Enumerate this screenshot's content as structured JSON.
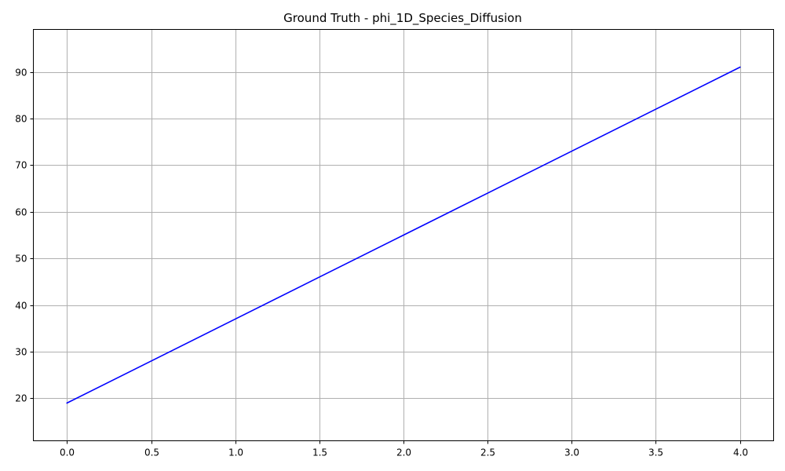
{
  "chart_data": {
    "type": "line",
    "title": "Ground Truth - phi_1D_Species_Diffusion",
    "xlabel": "",
    "ylabel": "",
    "xlim": [
      -0.2,
      4.2
    ],
    "ylim": [
      10.9,
      99.1
    ],
    "x_ticks": [
      0.0,
      0.5,
      1.0,
      1.5,
      2.0,
      2.5,
      3.0,
      3.5,
      4.0
    ],
    "x_tick_labels": [
      "0.0",
      "0.5",
      "1.0",
      "1.5",
      "2.0",
      "2.5",
      "3.0",
      "3.5",
      "4.0"
    ],
    "y_ticks": [
      20,
      30,
      40,
      50,
      60,
      70,
      80,
      90
    ],
    "y_tick_labels": [
      "20",
      "30",
      "40",
      "50",
      "60",
      "70",
      "80",
      "90"
    ],
    "grid": true,
    "legend": "none",
    "series": [
      {
        "color": "#0000ff",
        "x": [
          0.0,
          0.5,
          1.0,
          1.5,
          2.0,
          2.5,
          3.0,
          3.5,
          4.0
        ],
        "y": [
          19,
          28,
          37,
          46,
          55,
          64,
          73,
          82,
          91
        ]
      }
    ]
  }
}
